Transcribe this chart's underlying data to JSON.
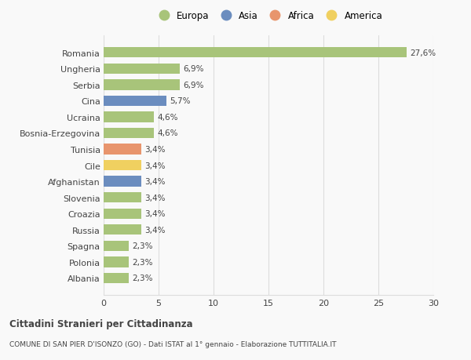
{
  "countries": [
    "Albania",
    "Polonia",
    "Spagna",
    "Russia",
    "Croazia",
    "Slovenia",
    "Afghanistan",
    "Cile",
    "Tunisia",
    "Bosnia-Erzegovina",
    "Ucraina",
    "Cina",
    "Serbia",
    "Ungheria",
    "Romania"
  ],
  "values": [
    2.3,
    2.3,
    2.3,
    3.4,
    3.4,
    3.4,
    3.4,
    3.4,
    3.4,
    4.6,
    4.6,
    5.7,
    6.9,
    6.9,
    27.6
  ],
  "labels": [
    "2,3%",
    "2,3%",
    "2,3%",
    "3,4%",
    "3,4%",
    "3,4%",
    "3,4%",
    "3,4%",
    "3,4%",
    "4,6%",
    "4,6%",
    "5,7%",
    "6,9%",
    "6,9%",
    "27,6%"
  ],
  "continents": [
    "Europa",
    "Europa",
    "Europa",
    "Europa",
    "Europa",
    "Europa",
    "Asia",
    "America",
    "Africa",
    "Europa",
    "Europa",
    "Asia",
    "Europa",
    "Europa",
    "Europa"
  ],
  "colors": {
    "Europa": "#a8c47a",
    "Asia": "#6b8dbf",
    "Africa": "#e8956d",
    "America": "#f0d060"
  },
  "legend_order": [
    "Europa",
    "Asia",
    "Africa",
    "America"
  ],
  "legend_colors": [
    "#a8c47a",
    "#6b8dbf",
    "#e8956d",
    "#f0d060"
  ],
  "xlim": [
    0,
    30
  ],
  "xticks": [
    0,
    5,
    10,
    15,
    20,
    25,
    30
  ],
  "title": "Cittadini Stranieri per Cittadinanza",
  "subtitle": "COMUNE DI SAN PIER D'ISONZO (GO) - Dati ISTAT al 1° gennaio - Elaborazione TUTTITALIA.IT",
  "background_color": "#f9f9f9",
  "grid_color": "#dddddd",
  "bar_height": 0.65,
  "text_color": "#444444",
  "label_fontsize": 7.5,
  "tick_fontsize": 8
}
